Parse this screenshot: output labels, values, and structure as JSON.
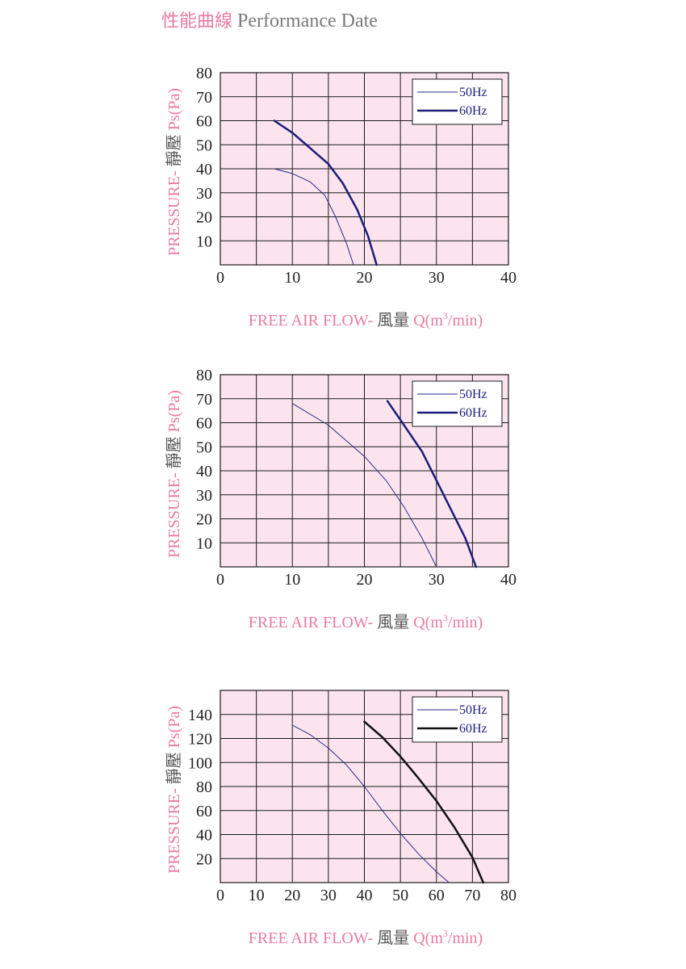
{
  "heading": {
    "chinese": "性能曲線",
    "english": "Performance Date"
  },
  "colors": {
    "grid": "#1a1a1a",
    "plot_bg": "#fbe4ee",
    "axis_label": "#ea7ba3",
    "legend_text": "#1c1c7a"
  },
  "chart_data": [
    {
      "type": "line",
      "xlabel": {
        "prefix": "FREE AIR FLOW-",
        "chinese": "風量",
        "q": "Q",
        "unit_pre": "(m",
        "sup": "3",
        "unit_post": "/min)"
      },
      "ylabel": {
        "prefix": "PRESSURE-",
        "chinese": "靜壓",
        "unit": "Ps(Pa)"
      },
      "xlim": [
        0,
        40
      ],
      "ylim": [
        0,
        80
      ],
      "x_ticks": [
        0,
        10,
        20,
        30,
        40
      ],
      "y_ticks": [
        10,
        20,
        30,
        40,
        50,
        60,
        70,
        80
      ],
      "grid": true,
      "legend": "top-right",
      "series": [
        {
          "name": "50Hz",
          "color": "#2a2a8c",
          "width": 1,
          "points": [
            [
              7.5,
              40
            ],
            [
              10,
              38
            ],
            [
              12.5,
              34.5
            ],
            [
              14.5,
              29
            ],
            [
              16,
              20
            ],
            [
              17.5,
              9
            ],
            [
              18.5,
              0
            ]
          ]
        },
        {
          "name": "60Hz",
          "color": "#1c1c7a",
          "width": 2.5,
          "points": [
            [
              7.5,
              60
            ],
            [
              10,
              55
            ],
            [
              12.5,
              48.5
            ],
            [
              15,
              42
            ],
            [
              17,
              34
            ],
            [
              19,
              23
            ],
            [
              20.5,
              12
            ],
            [
              21.7,
              0
            ]
          ]
        }
      ]
    },
    {
      "type": "line",
      "xlabel": {
        "prefix": "FREE AIR FLOW-",
        "chinese": "風量",
        "q": "Q",
        "unit_pre": "(m",
        "sup": "3",
        "unit_post": "/min)"
      },
      "ylabel": {
        "prefix": "PRESSURE-",
        "chinese": "靜壓",
        "unit": "Ps(Pa)"
      },
      "xlim": [
        0,
        40
      ],
      "ylim": [
        0,
        80
      ],
      "x_ticks": [
        0,
        10,
        20,
        30,
        40
      ],
      "y_ticks": [
        10,
        20,
        30,
        40,
        50,
        60,
        70,
        80
      ],
      "grid": true,
      "legend": "top-right",
      "series": [
        {
          "name": "50Hz",
          "color": "#2a2a8c",
          "width": 1,
          "points": [
            [
              10,
              68
            ],
            [
              15,
              59
            ],
            [
              20,
              46
            ],
            [
              23,
              36
            ],
            [
              25.5,
              25
            ],
            [
              28,
              12
            ],
            [
              30,
              0
            ]
          ]
        },
        {
          "name": "60Hz",
          "color": "#1c1c7a",
          "width": 2.5,
          "points": [
            [
              23.2,
              69
            ],
            [
              25.5,
              59
            ],
            [
              28,
              48
            ],
            [
              30,
              36
            ],
            [
              32,
              24
            ],
            [
              34,
              12
            ],
            [
              35.5,
              0
            ]
          ]
        }
      ]
    },
    {
      "type": "line",
      "xlabel": {
        "prefix": "FREE AIR FLOW-",
        "chinese": "風量",
        "q": "Q",
        "unit_pre": "(m",
        "sup": "3",
        "unit_post": "/min)"
      },
      "ylabel": {
        "prefix": "PRESSURE-",
        "chinese": "靜壓",
        "unit": "Ps(Pa)"
      },
      "xlim": [
        0,
        80
      ],
      "ylim": [
        0,
        160
      ],
      "x_ticks": [
        0,
        10,
        20,
        30,
        40,
        50,
        60,
        70,
        80
      ],
      "y_ticks": [
        20,
        40,
        60,
        80,
        100,
        120,
        140
      ],
      "grid": true,
      "legend": "top-right",
      "series": [
        {
          "name": "50Hz",
          "color": "#2a2a8c",
          "width": 1,
          "points": [
            [
              20,
              131
            ],
            [
              25,
              123
            ],
            [
              30,
              112
            ],
            [
              35,
              98
            ],
            [
              40,
              80
            ],
            [
              45,
              60
            ],
            [
              50,
              41
            ],
            [
              55,
              24
            ],
            [
              60,
              9
            ],
            [
              63.5,
              0
            ]
          ]
        },
        {
          "name": "60Hz",
          "color": "#111111",
          "width": 2.5,
          "points": [
            [
              40,
              134
            ],
            [
              45,
              121
            ],
            [
              50,
              105
            ],
            [
              55,
              87
            ],
            [
              60,
              68
            ],
            [
              65,
              46
            ],
            [
              70,
              21
            ],
            [
              73,
              0
            ]
          ]
        }
      ]
    }
  ]
}
